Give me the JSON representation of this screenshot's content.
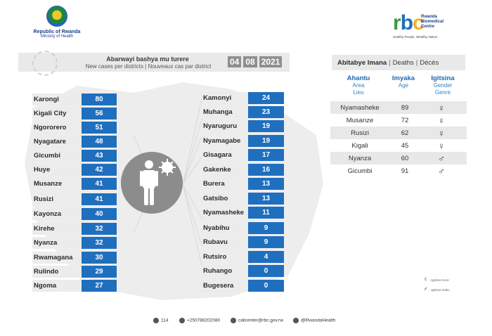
{
  "header": {
    "ministry_line1": "Republic of Rwanda",
    "ministry_line2": "Ministry of Health",
    "rbc_letters": [
      "r",
      "b",
      "c"
    ],
    "rbc_name_lines": [
      "Rwanda",
      "Biomedical",
      "Centre"
    ],
    "rbc_tagline": "Healthy People, Wealthy Nation"
  },
  "banner": {
    "title": "Abarwayi bashya mu turere",
    "subtitle": "New cases per districts  |  Nouveaux cas par district",
    "date": [
      "04",
      "08",
      "2021"
    ]
  },
  "cases_left": [
    {
      "district": "Karongi",
      "count": "80"
    },
    {
      "district": "Kigali City",
      "count": "56"
    },
    {
      "district": "Ngororero",
      "count": "51"
    },
    {
      "district": "Nyagatare",
      "count": "48"
    },
    {
      "district": "Gicumbi",
      "count": "43"
    },
    {
      "district": "Huye",
      "count": "42"
    },
    {
      "district": "Musanze",
      "count": "41"
    },
    {
      "district": "Rusizi",
      "count": "41"
    },
    {
      "district": "Kayonza",
      "count": "40"
    },
    {
      "district": "Kirehe",
      "count": "32"
    },
    {
      "district": "Nyanza",
      "count": "32"
    },
    {
      "district": "Rwamagana",
      "count": "30"
    },
    {
      "district": "Rulindo",
      "count": "29"
    },
    {
      "district": "Ngoma",
      "count": "27"
    }
  ],
  "cases_right": [
    {
      "district": "Kamonyi",
      "count": "24"
    },
    {
      "district": "Muhanga",
      "count": "23"
    },
    {
      "district": "Nyaruguru",
      "count": "19"
    },
    {
      "district": "Nyamagabe",
      "count": "19"
    },
    {
      "district": "Gisagara",
      "count": "17"
    },
    {
      "district": "Gakenke",
      "count": "16"
    },
    {
      "district": "Burera",
      "count": "13"
    },
    {
      "district": "Gatsibo",
      "count": "13"
    },
    {
      "district": "Nyamasheke",
      "count": "11"
    },
    {
      "district": "Nyabihu",
      "count": "9"
    },
    {
      "district": "Rubavu",
      "count": "9"
    },
    {
      "district": "Rutsiro",
      "count": "4"
    },
    {
      "district": "Ruhango",
      "count": "0"
    },
    {
      "district": "Bugesera",
      "count": "0"
    }
  ],
  "deaths": {
    "title_rw": "Abitabye Imana",
    "title_en": "Deaths",
    "title_fr": "Décès",
    "col_area": {
      "rw": "Ahantu",
      "en": "Area",
      "fr": "Lieu"
    },
    "col_age": {
      "rw": "Imyaka",
      "en": "Age"
    },
    "col_gender": {
      "rw": "Igitsina",
      "en": "Gender",
      "fr": "Genre"
    },
    "rows": [
      {
        "area": "Nyamasheke",
        "age": "89",
        "gender": "♀"
      },
      {
        "area": "Musanze",
        "age": "72",
        "gender": "♀"
      },
      {
        "area": "Rusizi",
        "age": "62",
        "gender": "♀"
      },
      {
        "area": "Kigali",
        "age": "45",
        "gender": "♀"
      },
      {
        "area": "Nyanza",
        "age": "60",
        "gender": "♂"
      },
      {
        "area": "Gicumbi",
        "age": "91",
        "gender": "♂"
      }
    ],
    "legend": [
      {
        "symbol": "♀",
        "text": ": Igitsina Gore"
      },
      {
        "symbol": "♂",
        "text": ": Igitsina Gabo"
      }
    ]
  },
  "footer": {
    "hotline": "114",
    "phone": "+250788202080",
    "email": "callcenter@rbc.gov.rw",
    "social": "@RwandaHealth"
  },
  "colors": {
    "accent_blue": "#1f6fbf",
    "label_gray": "#ececec",
    "banner_gray": "#e9e9e9"
  }
}
